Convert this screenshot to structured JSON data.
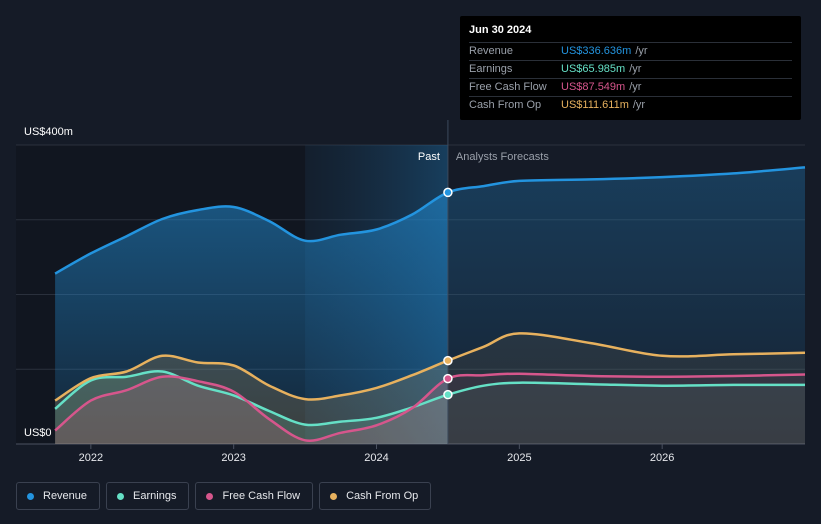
{
  "chart_data": {
    "type": "area",
    "y_axis_top_label": "US$400m",
    "y_axis_bottom_label": "US$0",
    "ylim": [
      0,
      400
    ],
    "xlim": [
      2021.7,
      2027.0
    ],
    "x_ticks": [
      2022,
      2023,
      2024,
      2025,
      2026
    ],
    "x_tick_labels": [
      "2022",
      "2023",
      "2024",
      "2025",
      "2026"
    ],
    "past_label": "Past",
    "forecast_label": "Analysts Forecasts",
    "forecast_start": 2024.5,
    "series": [
      {
        "name": "Revenue",
        "color": "#2394df",
        "points": [
          [
            2021.75,
            228
          ],
          [
            2022.0,
            255
          ],
          [
            2022.25,
            278
          ],
          [
            2022.5,
            301
          ],
          [
            2022.75,
            313
          ],
          [
            2023.0,
            317
          ],
          [
            2023.25,
            298
          ],
          [
            2023.5,
            272
          ],
          [
            2023.75,
            280
          ],
          [
            2024.0,
            287
          ],
          [
            2024.25,
            307
          ],
          [
            2024.5,
            336.6
          ],
          [
            2024.75,
            345
          ],
          [
            2025.0,
            352
          ],
          [
            2025.5,
            354
          ],
          [
            2026.0,
            357
          ],
          [
            2026.5,
            362
          ],
          [
            2027.0,
            370
          ]
        ]
      },
      {
        "name": "Earnings",
        "color": "#65e0c6",
        "points": [
          [
            2021.75,
            47
          ],
          [
            2022.0,
            85
          ],
          [
            2022.25,
            90
          ],
          [
            2022.5,
            97
          ],
          [
            2022.75,
            78
          ],
          [
            2023.0,
            65
          ],
          [
            2023.25,
            44
          ],
          [
            2023.5,
            26
          ],
          [
            2023.75,
            30
          ],
          [
            2024.0,
            35
          ],
          [
            2024.25,
            49
          ],
          [
            2024.5,
            66
          ],
          [
            2024.75,
            78
          ],
          [
            2025.0,
            82
          ],
          [
            2025.5,
            80
          ],
          [
            2026.0,
            78
          ],
          [
            2026.5,
            79
          ],
          [
            2027.0,
            79
          ]
        ]
      },
      {
        "name": "Free Cash Flow",
        "color": "#d6568c",
        "points": [
          [
            2021.75,
            18
          ],
          [
            2022.0,
            58
          ],
          [
            2022.25,
            72
          ],
          [
            2022.5,
            90
          ],
          [
            2022.75,
            84
          ],
          [
            2023.0,
            70
          ],
          [
            2023.25,
            33
          ],
          [
            2023.5,
            5
          ],
          [
            2023.75,
            15
          ],
          [
            2024.0,
            25
          ],
          [
            2024.25,
            48
          ],
          [
            2024.5,
            87.5
          ],
          [
            2024.75,
            92
          ],
          [
            2025.0,
            94
          ],
          [
            2025.5,
            91
          ],
          [
            2026.0,
            90
          ],
          [
            2026.5,
            91
          ],
          [
            2027.0,
            93
          ]
        ]
      },
      {
        "name": "Cash From Op",
        "color": "#e7b15e",
        "points": [
          [
            2021.75,
            58
          ],
          [
            2022.0,
            88
          ],
          [
            2022.25,
            97
          ],
          [
            2022.5,
            118
          ],
          [
            2022.75,
            109
          ],
          [
            2023.0,
            105
          ],
          [
            2023.25,
            78
          ],
          [
            2023.5,
            60
          ],
          [
            2023.75,
            65
          ],
          [
            2024.0,
            75
          ],
          [
            2024.25,
            92
          ],
          [
            2024.5,
            111.6
          ],
          [
            2024.75,
            130
          ],
          [
            2025.0,
            148
          ],
          [
            2025.5,
            135
          ],
          [
            2026.0,
            118
          ],
          [
            2026.5,
            120
          ],
          [
            2027.0,
            122
          ]
        ]
      }
    ]
  },
  "tooltip": {
    "date": "Jun 30 2024",
    "rows": [
      {
        "name": "Revenue",
        "value": "US$336.636m",
        "unit": "/yr",
        "color": "#2394df"
      },
      {
        "name": "Earnings",
        "value": "US$65.985m",
        "unit": "/yr",
        "color": "#65e0c6"
      },
      {
        "name": "Free Cash Flow",
        "value": "US$87.549m",
        "unit": "/yr",
        "color": "#d6568c"
      },
      {
        "name": "Cash From Op",
        "value": "US$111.611m",
        "unit": "/yr",
        "color": "#e7b15e"
      }
    ]
  },
  "legend": [
    {
      "label": "Revenue",
      "color": "#2394df"
    },
    {
      "label": "Earnings",
      "color": "#65e0c6"
    },
    {
      "label": "Free Cash Flow",
      "color": "#d6568c"
    },
    {
      "label": "Cash From Op",
      "color": "#e7b15e"
    }
  ]
}
